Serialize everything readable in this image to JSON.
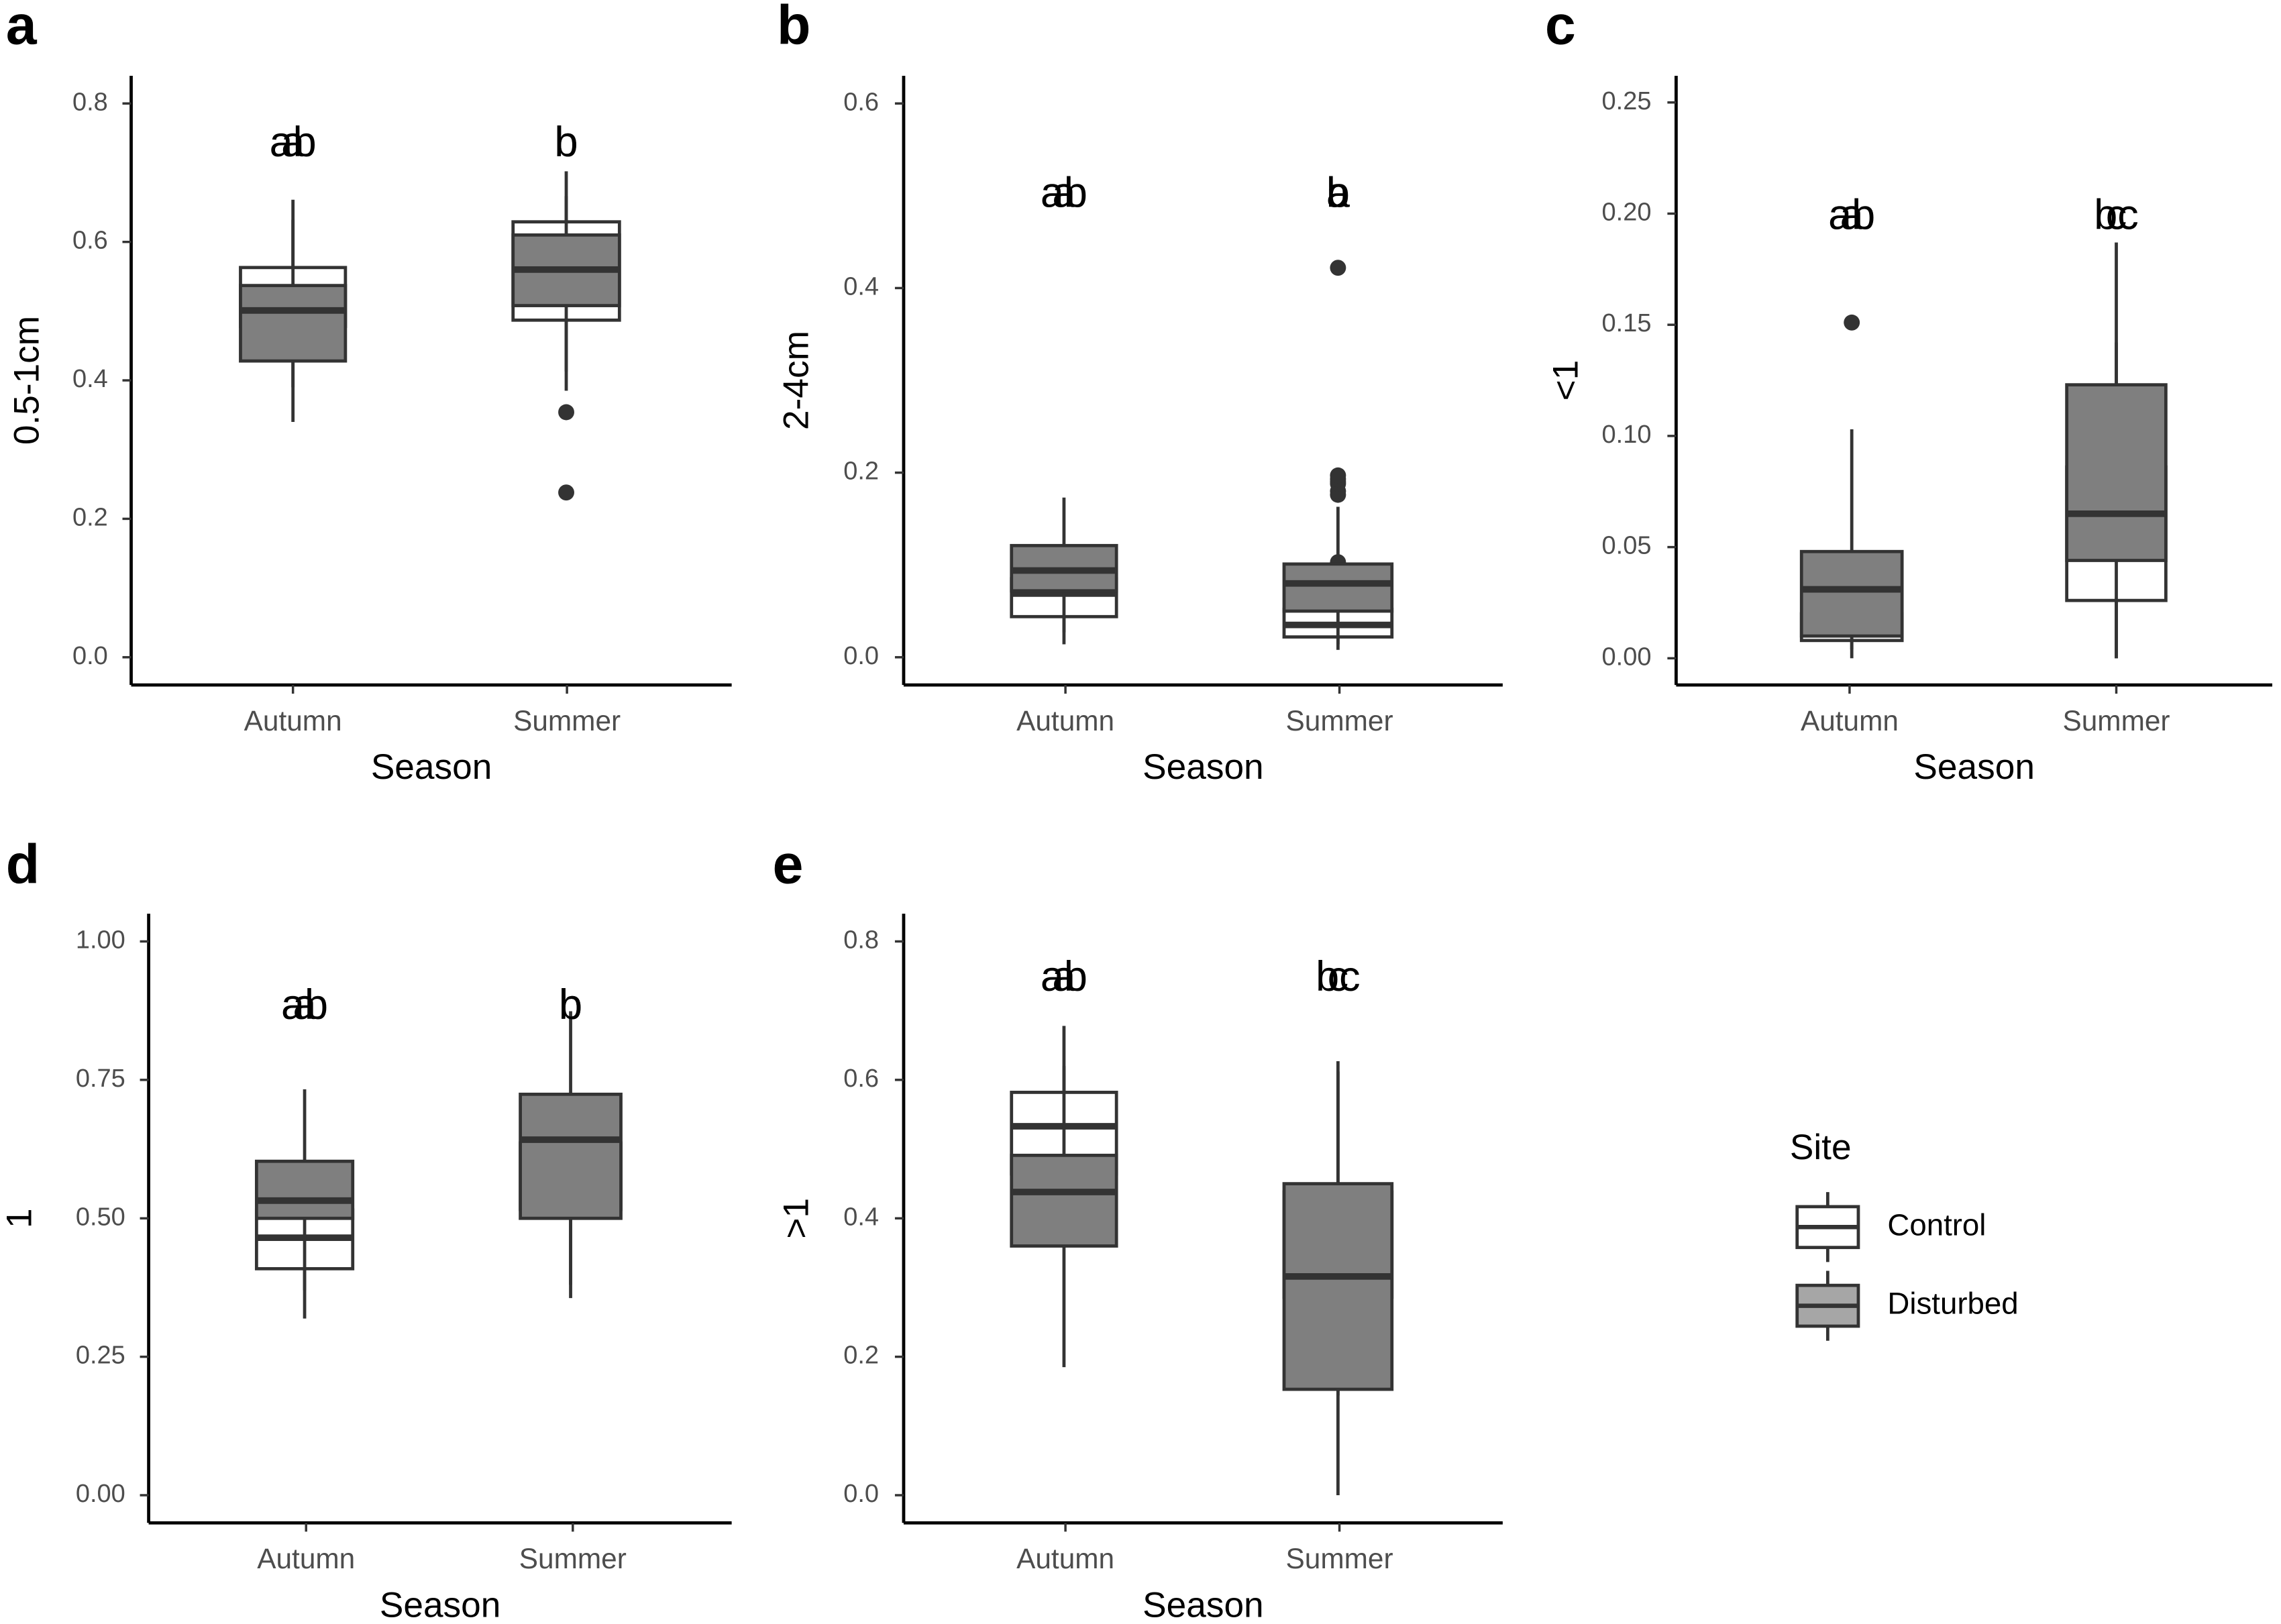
{
  "chart_data": [
    {
      "panel": "a",
      "type": "boxplot",
      "title": "",
      "xlabel": "Season",
      "ylabel": "0.5-1cm",
      "categories": [
        "Autumn",
        "Summer"
      ],
      "ylim": [
        -0.04,
        0.84
      ],
      "yticks": [
        0.0,
        0.2,
        0.4,
        0.6,
        0.8
      ],
      "ytick_labels": [
        "0.0",
        "0.2",
        "0.4",
        "0.6",
        "0.8"
      ],
      "letters": [
        "ab",
        "a",
        "b",
        "b"
      ],
      "letter_y": 0.74,
      "series": [
        {
          "name": "Control",
          "boxes": [
            {
              "whisker_low": 0.39,
              "q1": 0.478,
              "median": 0.51,
              "q3": 0.563,
              "whisker_high": 0.632,
              "outliers": []
            },
            {
              "whisker_low": 0.385,
              "q1": 0.487,
              "median": 0.56,
              "q3": 0.629,
              "whisker_high": 0.702,
              "outliers": []
            }
          ]
        },
        {
          "name": "Disturbed",
          "boxes": [
            {
              "whisker_low": 0.34,
              "q1": 0.428,
              "median": 0.501,
              "q3": 0.537,
              "whisker_high": 0.661,
              "outliers": []
            },
            {
              "whisker_low": 0.413,
              "q1": 0.508,
              "median": 0.56,
              "q3": 0.61,
              "whisker_high": 0.666,
              "outliers": [
                0.354,
                0.238
              ]
            }
          ]
        }
      ]
    },
    {
      "panel": "b",
      "type": "boxplot",
      "title": "",
      "xlabel": "Season",
      "ylabel": "2-4cm",
      "categories": [
        "Autumn",
        "Summer"
      ],
      "ylim": [
        -0.03,
        0.63
      ],
      "yticks": [
        0.0,
        0.2,
        0.4,
        0.6
      ],
      "ytick_labels": [
        "0.0",
        "0.2",
        "0.4",
        "0.6"
      ],
      "letters": [
        "ab",
        "a",
        "b",
        "a"
      ],
      "letter_y": 0.5,
      "series": [
        {
          "name": "Control",
          "boxes": [
            {
              "whisker_low": 0.027,
              "q1": 0.044,
              "median": 0.069,
              "q3": 0.085,
              "whisker_high": 0.098,
              "outliers": []
            },
            {
              "whisker_low": 0.008,
              "q1": 0.022,
              "median": 0.035,
              "q3": 0.052,
              "whisker_high": 0.08,
              "outliers": [
                0.095,
                0.1,
                0.103,
                0.19
              ]
            }
          ]
        },
        {
          "name": "Disturbed",
          "boxes": [
            {
              "whisker_low": 0.014,
              "q1": 0.072,
              "median": 0.094,
              "q3": 0.121,
              "whisker_high": 0.173,
              "outliers": []
            },
            {
              "whisker_low": 0.014,
              "q1": 0.05,
              "median": 0.08,
              "q3": 0.101,
              "whisker_high": 0.163,
              "outliers": [
                0.176,
                0.18,
                0.188,
                0.193,
                0.197,
                0.422
              ]
            }
          ]
        }
      ]
    },
    {
      "panel": "c",
      "type": "boxplot",
      "title": "",
      "xlabel": "Season",
      "ylabel": "<1",
      "categories": [
        "Autumn",
        "Summer"
      ],
      "ylim": [
        -0.012,
        0.262
      ],
      "yticks": [
        0.0,
        0.05,
        0.1,
        0.15,
        0.2,
        0.25
      ],
      "ytick_labels": [
        "0.00",
        "0.05",
        "0.10",
        "0.15",
        "0.20",
        "0.25"
      ],
      "letters": [
        "a",
        "ab",
        "bc",
        "c"
      ],
      "letter_y": 0.198,
      "series": [
        {
          "name": "Control",
          "boxes": [
            {
              "whisker_low": 0.004,
              "q1": 0.008,
              "median": 0.015,
              "q3": 0.02,
              "whisker_high": 0.028,
              "outliers": [
                0.044
              ]
            },
            {
              "whisker_low": 0.0,
              "q1": 0.026,
              "median": 0.051,
              "q3": 0.086,
              "whisker_high": 0.142,
              "outliers": []
            }
          ]
        },
        {
          "name": "Disturbed",
          "boxes": [
            {
              "whisker_low": 0.0,
              "q1": 0.01,
              "median": 0.031,
              "q3": 0.048,
              "whisker_high": 0.103,
              "outliers": [
                0.151
              ]
            },
            {
              "whisker_low": 0.0,
              "q1": 0.044,
              "median": 0.065,
              "q3": 0.123,
              "whisker_high": 0.187,
              "outliers": []
            }
          ]
        }
      ]
    },
    {
      "panel": "d",
      "type": "boxplot",
      "title": "",
      "xlabel": "Season",
      "ylabel": "1",
      "categories": [
        "Autumn",
        "Summer"
      ],
      "ylim": [
        -0.05,
        1.05
      ],
      "yticks": [
        0.0,
        0.25,
        0.5,
        0.75,
        1.0
      ],
      "ytick_labels": [
        "0.00",
        "0.25",
        "0.50",
        "0.75",
        "1.00"
      ],
      "letters": [
        "a",
        "ab",
        "b",
        "b"
      ],
      "letter_y": 0.88,
      "series": [
        {
          "name": "Control",
          "boxes": [
            {
              "whisker_low": 0.319,
              "q1": 0.409,
              "median": 0.465,
              "q3": 0.515,
              "whisker_high": 0.553,
              "outliers": []
            },
            {
              "whisker_low": 0.356,
              "q1": 0.516,
              "median": 0.59,
              "q3": 0.636,
              "whisker_high": 0.724,
              "outliers": []
            }
          ]
        },
        {
          "name": "Disturbed",
          "boxes": [
            {
              "whisker_low": 0.37,
              "q1": 0.5,
              "median": 0.532,
              "q3": 0.603,
              "whisker_high": 0.733,
              "outliers": []
            },
            {
              "whisker_low": 0.38,
              "q1": 0.5,
              "median": 0.642,
              "q3": 0.724,
              "whisker_high": 0.874,
              "outliers": []
            }
          ]
        }
      ]
    },
    {
      "panel": "e",
      "type": "boxplot",
      "title": "",
      "xlabel": "Season",
      "ylabel": ">1",
      "categories": [
        "Autumn",
        "Summer"
      ],
      "ylim": [
        -0.04,
        0.84
      ],
      "yticks": [
        0.0,
        0.2,
        0.4,
        0.6,
        0.8
      ],
      "ytick_labels": [
        "0.0",
        "0.2",
        "0.4",
        "0.6",
        "0.8"
      ],
      "letters": [
        "a",
        "ab",
        "bc",
        "c"
      ],
      "letter_y": 0.745,
      "series": [
        {
          "name": "Control",
          "boxes": [
            {
              "whisker_low": 0.421,
              "q1": 0.464,
              "median": 0.533,
              "q3": 0.582,
              "whisker_high": 0.678,
              "outliers": []
            },
            {
              "whisker_low": 0.144,
              "q1": 0.286,
              "median": 0.378,
              "q3": 0.438,
              "whisker_high": 0.627,
              "outliers": []
            }
          ]
        },
        {
          "name": "Disturbed",
          "boxes": [
            {
              "whisker_low": 0.185,
              "q1": 0.36,
              "median": 0.438,
              "q3": 0.491,
              "whisker_high": 0.62,
              "outliers": []
            },
            {
              "whisker_low": 0.0,
              "q1": 0.153,
              "median": 0.316,
              "q3": 0.45,
              "whisker_high": 0.612,
              "outliers": []
            }
          ]
        }
      ]
    }
  ],
  "legend": {
    "title": "Site",
    "entries": [
      {
        "label": "Control",
        "fill": "#ffffff"
      },
      {
        "label": "Disturbed",
        "fill": "#7f7f7f"
      }
    ]
  },
  "colors": {
    "control_fill": "#ffffff",
    "disturbed_fill": "#7f7f7f",
    "box_stroke": "#333333",
    "axis_text": "#4d4d4d",
    "outlier": "#333333"
  }
}
